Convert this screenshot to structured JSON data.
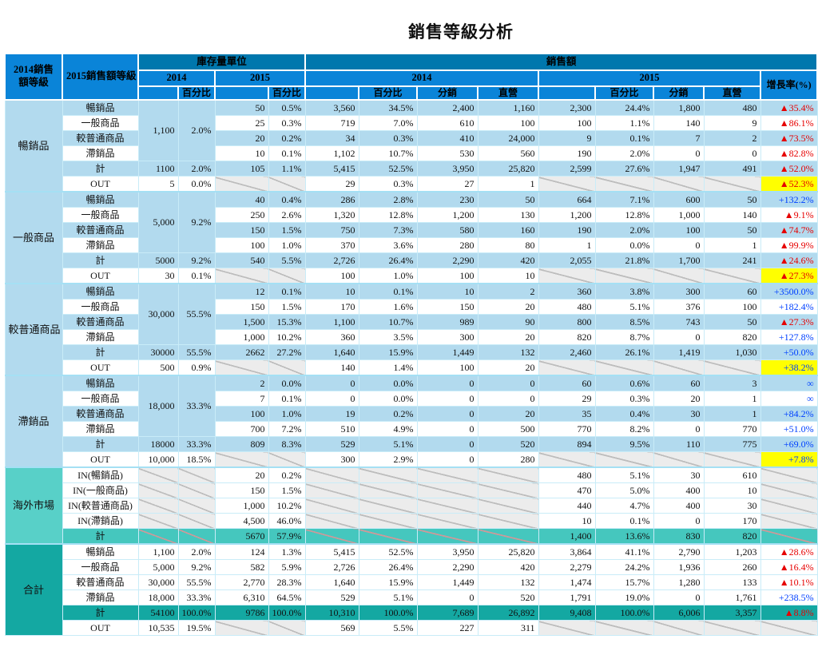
{
  "title": "銷售等級分析",
  "header": {
    "grade2014": "2014銷售額等級",
    "grade2015": "2015銷售額等級",
    "inventory_units": "庫存量單位",
    "sales_amount": "銷售額",
    "year2014": "2014",
    "year2015": "2015",
    "percent": "百分比",
    "distribution": "分銷",
    "direct": "直營",
    "growth_rate": "增長率(%)"
  },
  "colors": {
    "header_blue": "#0a84d8",
    "header_band": "#0077ad",
    "row_light_blue": "#b2daee",
    "overseas_teal": "#58d0c8",
    "overseas_total_teal": "#45c7be",
    "grand_total_teal": "#14a8a2",
    "highlight_yellow": "#ffff00",
    "growth_up_red": "#e60000",
    "growth_plus_blue": "#0040ff"
  },
  "sections": [
    {
      "group": "暢銷品",
      "style": "blue",
      "inv": {
        "v": "1,100",
        "p": "2.0%"
      },
      "rows": [
        {
          "label": "暢銷品",
          "c": [
            "50",
            "0.5%",
            "3,560",
            "34.5%",
            "2,400",
            "1,160",
            "2,300",
            "24.4%",
            "1,800",
            "480"
          ],
          "g": "▲35.4%"
        },
        {
          "label": "一般商品",
          "c": [
            "25",
            "0.3%",
            "719",
            "7.0%",
            "610",
            "100",
            "100",
            "1.1%",
            "140",
            "9"
          ],
          "g": "▲86.1%"
        },
        {
          "label": "較普通商品",
          "c": [
            "20",
            "0.2%",
            "34",
            "0.3%",
            "410",
            "24,000",
            "9",
            "0.1%",
            "7",
            "2"
          ],
          "g": "▲73.5%"
        },
        {
          "label": "滯銷品",
          "c": [
            "10",
            "0.1%",
            "1,102",
            "10.7%",
            "530",
            "560",
            "190",
            "2.0%",
            "0",
            "0"
          ],
          "g": "▲82.8%"
        },
        {
          "label": "計",
          "c": [
            "1100",
            "2.0%",
            "105",
            "1.1%",
            "5,415",
            "52.5%",
            "3,950",
            "25,820",
            "2,599",
            "27.6%",
            "1,947",
            "491"
          ],
          "g": "▲52.0%"
        },
        {
          "label": "OUT",
          "c": [
            "5",
            "0.0%",
            null,
            null,
            "29",
            "0.3%",
            "27",
            "1",
            null,
            null,
            null,
            null
          ],
          "g": "▲52.3%"
        }
      ]
    },
    {
      "group": "一般商品",
      "style": "blue",
      "inv": {
        "v": "5,000",
        "p": "9.2%"
      },
      "rows": [
        {
          "label": "暢銷品",
          "c": [
            "40",
            "0.4%",
            "286",
            "2.8%",
            "230",
            "50",
            "664",
            "7.1%",
            "600",
            "50"
          ],
          "g": "+132.2%"
        },
        {
          "label": "一般商品",
          "c": [
            "250",
            "2.6%",
            "1,320",
            "12.8%",
            "1,200",
            "130",
            "1,200",
            "12.8%",
            "1,000",
            "140"
          ],
          "g": "▲9.1%"
        },
        {
          "label": "較普通商品",
          "c": [
            "150",
            "1.5%",
            "750",
            "7.3%",
            "580",
            "160",
            "190",
            "2.0%",
            "100",
            "50"
          ],
          "g": "▲74.7%"
        },
        {
          "label": "滯銷品",
          "c": [
            "100",
            "1.0%",
            "370",
            "3.6%",
            "280",
            "80",
            "1",
            "0.0%",
            "0",
            "1"
          ],
          "g": "▲99.9%"
        },
        {
          "label": "計",
          "c": [
            "5000",
            "9.2%",
            "540",
            "5.5%",
            "2,726",
            "26.4%",
            "2,290",
            "420",
            "2,055",
            "21.8%",
            "1,700",
            "241"
          ],
          "g": "▲24.6%"
        },
        {
          "label": "OUT",
          "c": [
            "30",
            "0.1%",
            null,
            null,
            "100",
            "1.0%",
            "100",
            "10",
            null,
            null,
            null,
            null
          ],
          "g": "▲27.3%"
        }
      ]
    },
    {
      "group": "較普通商品",
      "style": "blue",
      "inv": {
        "v": "30,000",
        "p": "55.5%"
      },
      "rows": [
        {
          "label": "暢銷品",
          "c": [
            "12",
            "0.1%",
            "10",
            "0.1%",
            "10",
            "2",
            "360",
            "3.8%",
            "300",
            "60"
          ],
          "g": "+3500.0%"
        },
        {
          "label": "一般商品",
          "c": [
            "150",
            "1.5%",
            "170",
            "1.6%",
            "150",
            "20",
            "480",
            "5.1%",
            "376",
            "100"
          ],
          "g": "+182.4%"
        },
        {
          "label": "較普通商品",
          "c": [
            "1,500",
            "15.3%",
            "1,100",
            "10.7%",
            "989",
            "90",
            "800",
            "8.5%",
            "743",
            "50"
          ],
          "g": "▲27.3%"
        },
        {
          "label": "滯銷品",
          "c": [
            "1,000",
            "10.2%",
            "360",
            "3.5%",
            "300",
            "20",
            "820",
            "8.7%",
            "0",
            "820"
          ],
          "g": "+127.8%"
        },
        {
          "label": "計",
          "c": [
            "30000",
            "55.5%",
            "2662",
            "27.2%",
            "1,640",
            "15.9%",
            "1,449",
            "132",
            "2,460",
            "26.1%",
            "1,419",
            "1,030"
          ],
          "g": "+50.0%"
        },
        {
          "label": "OUT",
          "c": [
            "500",
            "0.9%",
            null,
            null,
            "140",
            "1.4%",
            "100",
            "20",
            null,
            null,
            null,
            null
          ],
          "g": "+38.2%"
        }
      ]
    },
    {
      "group": "滯銷品",
      "style": "blue",
      "inv": {
        "v": "18,000",
        "p": "33.3%"
      },
      "rows": [
        {
          "label": "暢銷品",
          "c": [
            "2",
            "0.0%",
            "0",
            "0.0%",
            "0",
            "0",
            "60",
            "0.6%",
            "60",
            "3"
          ],
          "g": "∞"
        },
        {
          "label": "一般商品",
          "c": [
            "7",
            "0.1%",
            "0",
            "0.0%",
            "0",
            "0",
            "29",
            "0.3%",
            "20",
            "1"
          ],
          "g": "∞"
        },
        {
          "label": "較普通商品",
          "c": [
            "100",
            "1.0%",
            "19",
            "0.2%",
            "0",
            "20",
            "35",
            "0.4%",
            "30",
            "1"
          ],
          "g": "+84.2%"
        },
        {
          "label": "滯銷品",
          "c": [
            "700",
            "7.2%",
            "510",
            "4.9%",
            "0",
            "500",
            "770",
            "8.2%",
            "0",
            "770"
          ],
          "g": "+51.0%"
        },
        {
          "label": "計",
          "c": [
            "18000",
            "33.3%",
            "809",
            "8.3%",
            "529",
            "5.1%",
            "0",
            "520",
            "894",
            "9.5%",
            "110",
            "775"
          ],
          "g": "+69.0%"
        },
        {
          "label": "OUT",
          "c": [
            "10,000",
            "18.5%",
            null,
            null,
            "300",
            "2.9%",
            "0",
            "280",
            null,
            null,
            null,
            null
          ],
          "g": "+7.8%"
        }
      ]
    },
    {
      "group": "海外市場",
      "style": "overseas",
      "inv": null,
      "rows": [
        {
          "label": "IN(暢銷品)",
          "c": [
            null,
            null,
            "20",
            "0.2%",
            null,
            null,
            null,
            null,
            "480",
            "5.1%",
            "30",
            "610"
          ],
          "g": null
        },
        {
          "label": "IN(一般商品)",
          "c": [
            null,
            null,
            "150",
            "1.5%",
            null,
            null,
            null,
            null,
            "470",
            "5.0%",
            "400",
            "10"
          ],
          "g": null
        },
        {
          "label": "IN(較普通商品)",
          "c": [
            null,
            null,
            "1,000",
            "10.2%",
            null,
            null,
            null,
            null,
            "440",
            "4.7%",
            "400",
            "30"
          ],
          "g": null
        },
        {
          "label": "IN(滯銷品)",
          "c": [
            null,
            null,
            "4,500",
            "46.0%",
            null,
            null,
            null,
            null,
            "10",
            "0.1%",
            "0",
            "170"
          ],
          "g": null
        },
        {
          "label": "計",
          "c": [
            null,
            null,
            "5670",
            "57.9%",
            null,
            null,
            null,
            null,
            "1,400",
            "13.6%",
            "830",
            "820"
          ],
          "g": null
        }
      ]
    },
    {
      "group": "合計",
      "style": "total",
      "inv": null,
      "rows": [
        {
          "label": "暢銷品",
          "c": [
            "1,100",
            "2.0%",
            "124",
            "1.3%",
            "5,415",
            "52.5%",
            "3,950",
            "25,820",
            "3,864",
            "41.1%",
            "2,790",
            "1,203"
          ],
          "g": "▲28.6%"
        },
        {
          "label": "一般商品",
          "c": [
            "5,000",
            "9.2%",
            "582",
            "5.9%",
            "2,726",
            "26.4%",
            "2,290",
            "420",
            "2,279",
            "24.2%",
            "1,936",
            "260"
          ],
          "g": "▲16.4%"
        },
        {
          "label": "較普通商品",
          "c": [
            "30,000",
            "55.5%",
            "2,770",
            "28.3%",
            "1,640",
            "15.9%",
            "1,449",
            "132",
            "1,474",
            "15.7%",
            "1,280",
            "133"
          ],
          "g": "▲10.1%"
        },
        {
          "label": "滯銷品",
          "c": [
            "18,000",
            "33.3%",
            "6,310",
            "64.5%",
            "529",
            "5.1%",
            "0",
            "520",
            "1,791",
            "19.0%",
            "0",
            "1,761"
          ],
          "g": "+238.5%"
        },
        {
          "label": "計",
          "c": [
            "54100",
            "100.0%",
            "9786",
            "100.0%",
            "10,310",
            "100.0%",
            "7,689",
            "26,892",
            "9,408",
            "100.0%",
            "6,006",
            "3,357"
          ],
          "g": "▲8.8%"
        },
        {
          "label": "OUT",
          "c": [
            "10,535",
            "19.5%",
            null,
            null,
            "569",
            "5.5%",
            "227",
            "311",
            null,
            null,
            null,
            null
          ],
          "g": null
        }
      ]
    }
  ]
}
